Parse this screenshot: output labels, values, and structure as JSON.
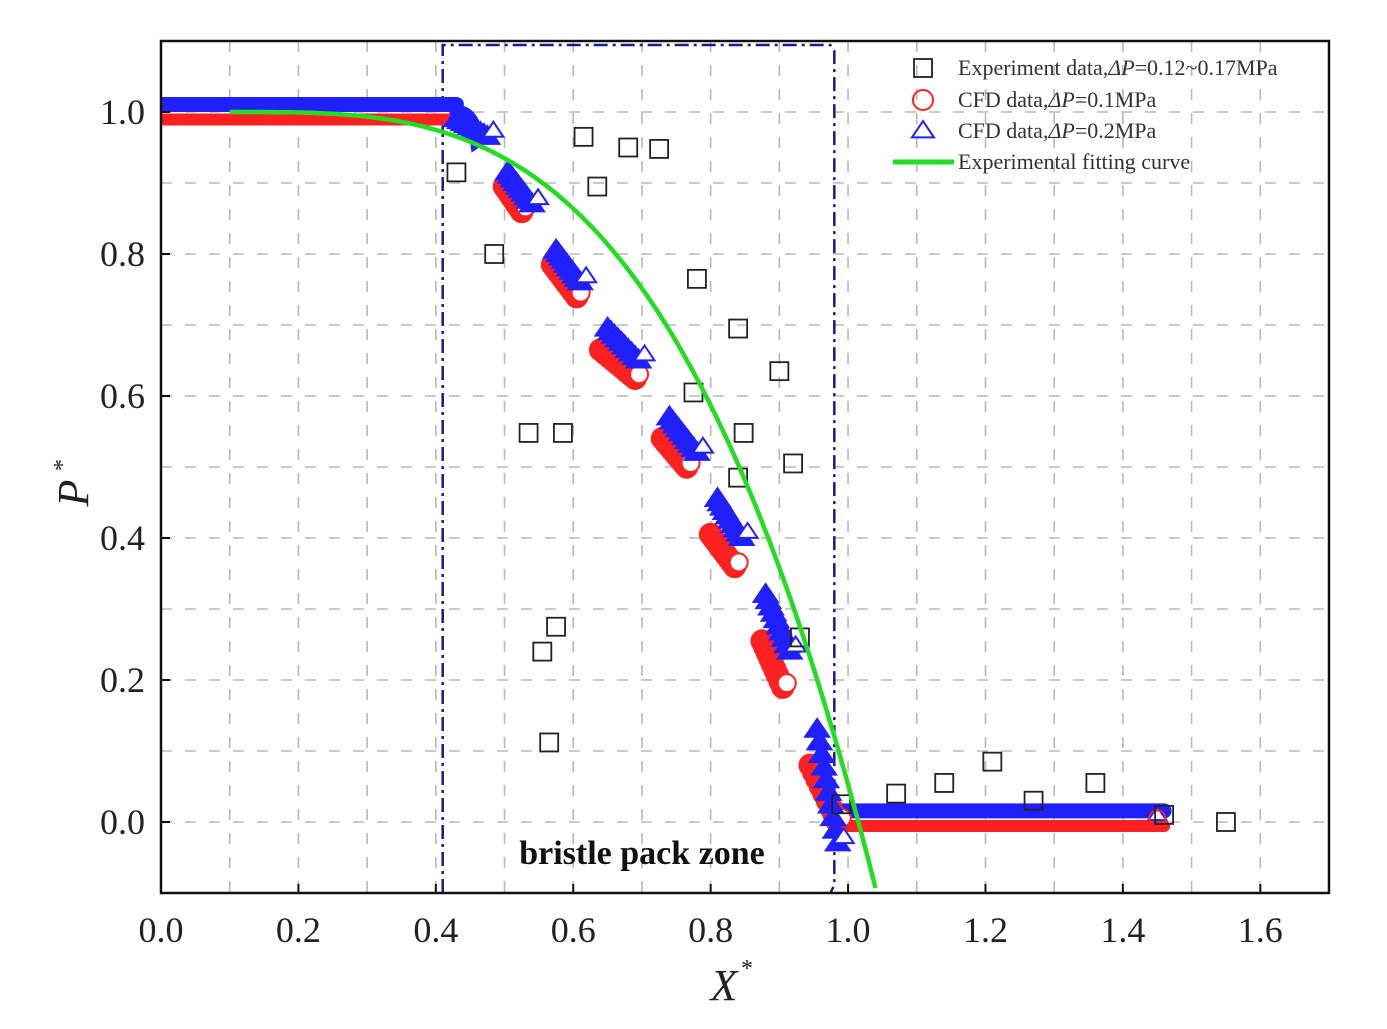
{
  "chart_data": {
    "type": "scatter",
    "title": "",
    "xlabel": "X",
    "xlabel_sup": "*",
    "ylabel": "P",
    "ylabel_sup": "*",
    "xlim": [
      0.0,
      1.7
    ],
    "ylim": [
      -0.1,
      1.1
    ],
    "xticks": [
      "0.0",
      "0.2",
      "0.4",
      "0.6",
      "0.8",
      "1.0",
      "1.2",
      "1.4",
      "1.6"
    ],
    "xtick_values": [
      0.0,
      0.2,
      0.4,
      0.6,
      0.8,
      1.0,
      1.2,
      1.4,
      1.6
    ],
    "yticks": [
      "0.0",
      "0.2",
      "0.4",
      "0.6",
      "0.8",
      "1.0"
    ],
    "ytick_values": [
      0.0,
      0.2,
      0.4,
      0.6,
      0.8,
      1.0
    ],
    "grid": true,
    "legend_position": "top-right",
    "annotation": {
      "text": "bristle pack zone",
      "zone_x": [
        0.41,
        0.98
      ],
      "zone_y": [
        -0.1,
        1.1
      ]
    },
    "series": [
      {
        "name": "experiment",
        "label_prefix": "Experiment data,",
        "label_symbol": "ΔP",
        "label_suffix": "=0.12~0.17MPa",
        "marker": "square",
        "color": "#222222",
        "points": [
          [
            0.43,
            0.915
          ],
          [
            0.485,
            0.8
          ],
          [
            0.535,
            0.548
          ],
          [
            0.585,
            0.548
          ],
          [
            0.615,
            0.965
          ],
          [
            0.635,
            0.895
          ],
          [
            0.68,
            0.95
          ],
          [
            0.725,
            0.948
          ],
          [
            0.78,
            0.765
          ],
          [
            0.775,
            0.605
          ],
          [
            0.84,
            0.695
          ],
          [
            0.848,
            0.548
          ],
          [
            0.84,
            0.485
          ],
          [
            0.9,
            0.635
          ],
          [
            0.92,
            0.505
          ],
          [
            0.93,
            0.26
          ],
          [
            0.565,
            0.112
          ],
          [
            0.555,
            0.24
          ],
          [
            0.575,
            0.275
          ],
          [
            0.99,
            0.025
          ],
          [
            1.07,
            0.04
          ],
          [
            1.14,
            0.055
          ],
          [
            1.21,
            0.085
          ],
          [
            1.27,
            0.03
          ],
          [
            1.36,
            0.055
          ],
          [
            1.46,
            0.01
          ],
          [
            1.55,
            0.0
          ]
        ]
      },
      {
        "name": "cfd_01",
        "label_prefix": "CFD data,",
        "label_symbol": "ΔP",
        "label_suffix": "=0.1MPa",
        "marker": "circle",
        "color": "#ff2020",
        "clusters": [
          {
            "x": [
              0.5,
              0.525
            ],
            "y": [
              0.895,
              0.86
            ]
          },
          {
            "x": [
              0.57,
              0.605
            ],
            "y": [
              0.785,
              0.74
            ]
          },
          {
            "x": [
              0.64,
              0.69
            ],
            "y": [
              0.665,
              0.625
            ]
          },
          {
            "x": [
              0.73,
              0.765
            ],
            "y": [
              0.54,
              0.5
            ]
          },
          {
            "x": [
              0.8,
              0.835
            ],
            "y": [
              0.405,
              0.36
            ]
          },
          {
            "x": [
              0.875,
              0.905
            ],
            "y": [
              0.255,
              0.19
            ]
          },
          {
            "x": [
              0.945,
              0.985
            ],
            "y": [
              0.08,
              0.0
            ]
          }
        ],
        "plateau_high": {
          "x": [
            0.0,
            0.45
          ],
          "y": 0.995
        },
        "plateau_low": {
          "x": [
            0.985,
            1.46
          ],
          "y": 0.0
        }
      },
      {
        "name": "cfd_02",
        "label_prefix": "CFD data,",
        "label_symbol": "ΔP",
        "label_suffix": "=0.2MPa",
        "marker": "triangle",
        "color": "#2020ff",
        "clusters": [
          {
            "x": [
              0.43,
              0.475
            ],
            "y": [
              0.99,
              0.965
            ]
          },
          {
            "x": [
              0.505,
              0.54
            ],
            "y": [
              0.915,
              0.87
            ]
          },
          {
            "x": [
              0.575,
              0.61
            ],
            "y": [
              0.805,
              0.76
            ]
          },
          {
            "x": [
              0.65,
              0.695
            ],
            "y": [
              0.695,
              0.65
            ]
          },
          {
            "x": [
              0.74,
              0.78
            ],
            "y": [
              0.57,
              0.52
            ]
          },
          {
            "x": [
              0.81,
              0.845
            ],
            "y": [
              0.455,
              0.4
            ]
          },
          {
            "x": [
              0.88,
              0.915
            ],
            "y": [
              0.32,
              0.24
            ]
          },
          {
            "x": [
              0.955,
              0.985
            ],
            "y": [
              0.13,
              -0.03
            ]
          }
        ],
        "plateau_high": {
          "x": [
            0.0,
            0.43
          ],
          "y": 1.005
        },
        "plateau_low": {
          "x": [
            0.985,
            1.46
          ],
          "y": 0.01
        }
      },
      {
        "name": "fit",
        "label_prefix": "Experimental fitting curve",
        "label_symbol": "",
        "label_suffix": "",
        "marker": "line",
        "color": "#22dd22",
        "curve": {
          "x_start": 0.1,
          "x_end": 1.04,
          "formula": "P = 1 - ((X-0.1)/0.915)^3.3"
        }
      }
    ]
  }
}
